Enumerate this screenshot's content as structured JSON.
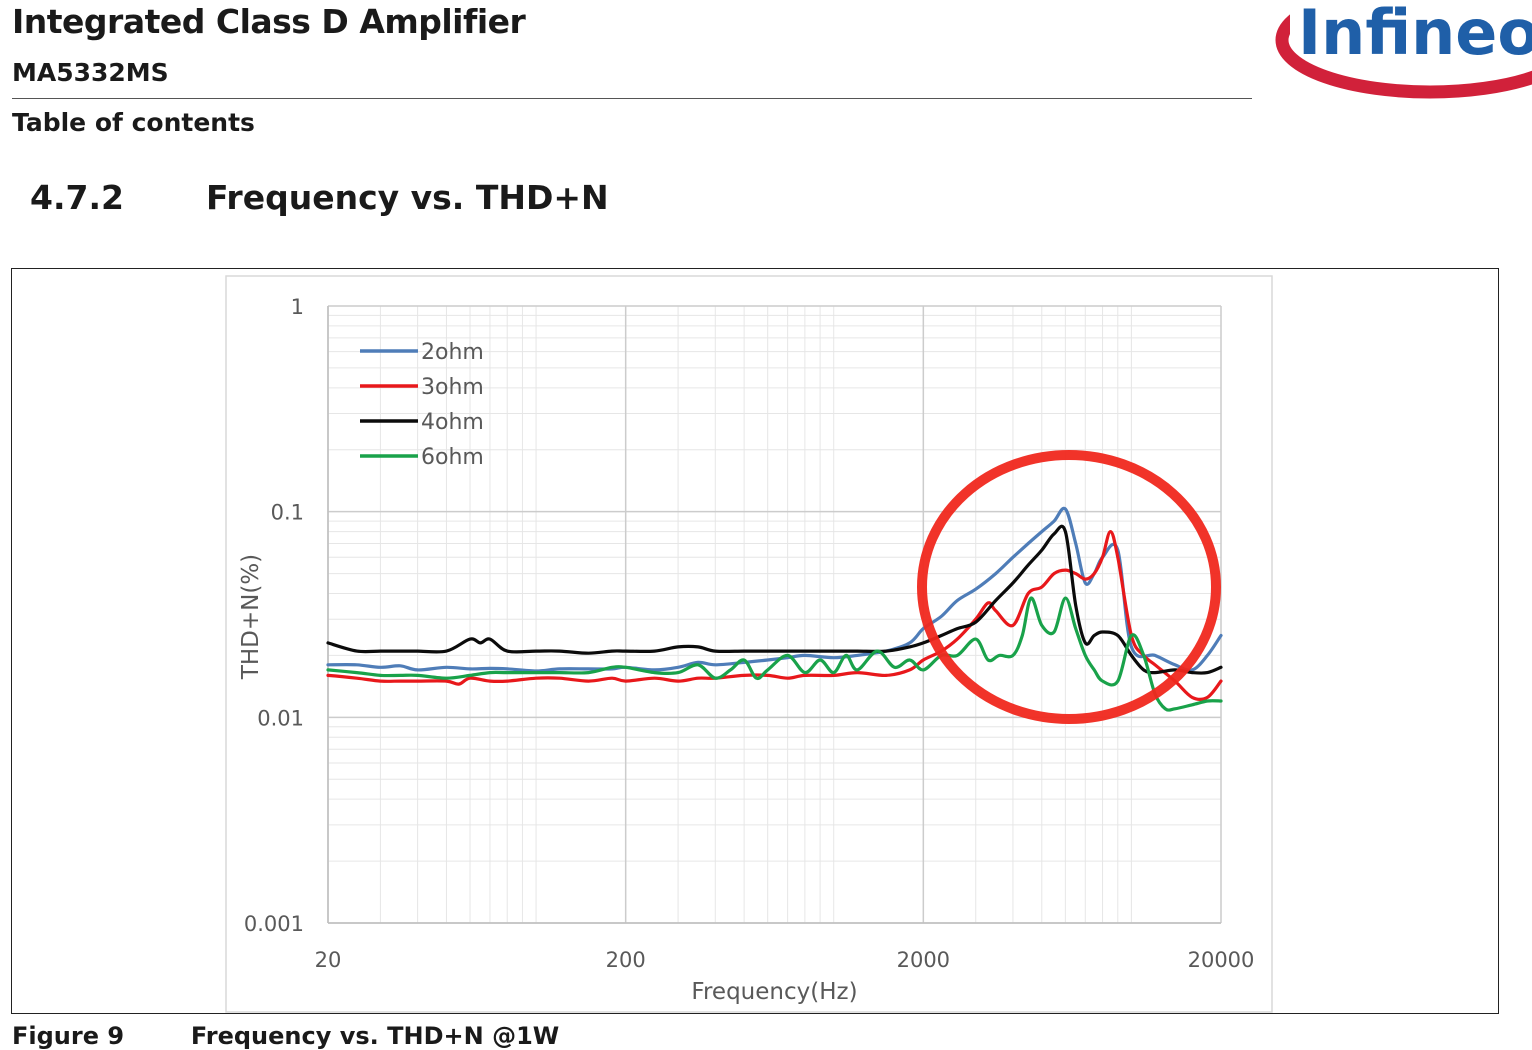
{
  "header": {
    "title": "Integrated Class D Amplifier",
    "subtitle": "MA5332MS",
    "section_label": "Table of contents",
    "logo_text": "Infineon",
    "logo_colors": {
      "text": "#1f5fa8",
      "swoosh": "#d1213a"
    }
  },
  "section": {
    "number": "4.7.2",
    "title": "Frequency vs. THD+N"
  },
  "caption": {
    "prefix": "Figure 9",
    "text": "Frequency vs. THD+N @1W"
  },
  "chart_data": {
    "type": "line",
    "title": "",
    "xlabel": "Frequency(Hz)",
    "ylabel": "THD+N(%)",
    "x_scale": "log",
    "y_scale": "log",
    "xlim": [
      20,
      20000
    ],
    "ylim": [
      0.001,
      1
    ],
    "x_ticks": [
      "20",
      "200",
      "2000",
      "20000"
    ],
    "y_ticks": [
      "0.001",
      "0.01",
      "0.1",
      "1"
    ],
    "grid": true,
    "legend_position": "top-left",
    "annotation": {
      "type": "red-circle-highlight",
      "x_range": [
        2000,
        20000
      ],
      "color": "#f0281e"
    },
    "series": [
      {
        "name": "2ohm",
        "color": "#4f7db8",
        "x": [
          20,
          25,
          30,
          35,
          40,
          50,
          60,
          70,
          80,
          100,
          120,
          150,
          180,
          200,
          250,
          300,
          350,
          400,
          500,
          600,
          700,
          800,
          1000,
          1200,
          1500,
          1800,
          2000,
          2300,
          2600,
          3000,
          3500,
          4000,
          4500,
          5000,
          5500,
          6000,
          6500,
          7000,
          7500,
          8000,
          9000,
          10000,
          12000,
          14000,
          16000,
          18000,
          20000
        ],
        "y": [
          0.018,
          0.018,
          0.0175,
          0.0178,
          0.017,
          0.0175,
          0.0172,
          0.0173,
          0.0172,
          0.0168,
          0.0172,
          0.0172,
          0.0172,
          0.0175,
          0.017,
          0.0175,
          0.0185,
          0.018,
          0.0185,
          0.019,
          0.0195,
          0.02,
          0.0195,
          0.02,
          0.021,
          0.023,
          0.027,
          0.031,
          0.037,
          0.042,
          0.05,
          0.06,
          0.07,
          0.08,
          0.09,
          0.103,
          0.07,
          0.045,
          0.05,
          0.06,
          0.065,
          0.022,
          0.02,
          0.018,
          0.017,
          0.02,
          0.025
        ]
      },
      {
        "name": "3ohm",
        "color": "#e8181b",
        "x": [
          20,
          25,
          30,
          35,
          40,
          50,
          55,
          60,
          70,
          80,
          100,
          120,
          150,
          180,
          200,
          250,
          300,
          350,
          400,
          500,
          600,
          700,
          800,
          1000,
          1200,
          1500,
          1800,
          2000,
          2300,
          2600,
          3000,
          3300,
          3500,
          4000,
          4500,
          5000,
          5500,
          6000,
          6500,
          7000,
          7500,
          8000,
          8500,
          9000,
          10000,
          11000,
          12000,
          14000,
          16000,
          18000,
          20000
        ],
        "y": [
          0.016,
          0.0155,
          0.015,
          0.015,
          0.015,
          0.015,
          0.0145,
          0.0155,
          0.015,
          0.015,
          0.0155,
          0.0155,
          0.015,
          0.0155,
          0.015,
          0.0155,
          0.015,
          0.0155,
          0.0155,
          0.016,
          0.016,
          0.0155,
          0.016,
          0.016,
          0.0165,
          0.016,
          0.017,
          0.019,
          0.021,
          0.024,
          0.03,
          0.036,
          0.033,
          0.028,
          0.04,
          0.043,
          0.05,
          0.052,
          0.05,
          0.047,
          0.05,
          0.06,
          0.08,
          0.06,
          0.025,
          0.02,
          0.018,
          0.015,
          0.0125,
          0.0125,
          0.015
        ]
      },
      {
        "name": "4ohm",
        "color": "#0b0b0b",
        "x": [
          20,
          25,
          30,
          35,
          40,
          50,
          60,
          65,
          70,
          80,
          100,
          120,
          150,
          180,
          200,
          250,
          300,
          350,
          400,
          500,
          600,
          700,
          800,
          1000,
          1200,
          1500,
          1800,
          2000,
          2300,
          2600,
          3000,
          3500,
          4000,
          4500,
          5000,
          5500,
          6000,
          6500,
          7000,
          7500,
          8000,
          9000,
          10000,
          11000,
          12000,
          14000,
          16000,
          18000,
          20000
        ],
        "y": [
          0.023,
          0.021,
          0.021,
          0.021,
          0.021,
          0.021,
          0.024,
          0.023,
          0.024,
          0.021,
          0.021,
          0.021,
          0.0205,
          0.021,
          0.021,
          0.021,
          0.022,
          0.022,
          0.021,
          0.021,
          0.021,
          0.021,
          0.021,
          0.021,
          0.021,
          0.021,
          0.022,
          0.023,
          0.025,
          0.027,
          0.029,
          0.037,
          0.045,
          0.055,
          0.065,
          0.078,
          0.08,
          0.035,
          0.023,
          0.025,
          0.026,
          0.025,
          0.02,
          0.017,
          0.0165,
          0.017,
          0.0165,
          0.0165,
          0.0175
        ]
      },
      {
        "name": "6ohm",
        "color": "#19a24a",
        "x": [
          20,
          25,
          30,
          35,
          40,
          50,
          60,
          70,
          80,
          100,
          120,
          150,
          180,
          200,
          250,
          300,
          350,
          400,
          450,
          500,
          550,
          600,
          700,
          800,
          900,
          1000,
          1100,
          1200,
          1400,
          1600,
          1800,
          2000,
          2300,
          2600,
          3000,
          3300,
          3600,
          4000,
          4300,
          4600,
          5000,
          5500,
          6000,
          6500,
          7000,
          7500,
          8000,
          9000,
          10000,
          11000,
          12000,
          13000,
          14000,
          16000,
          18000,
          20000
        ],
        "y": [
          0.017,
          0.0165,
          0.016,
          0.016,
          0.016,
          0.0155,
          0.016,
          0.0165,
          0.0165,
          0.0165,
          0.0165,
          0.0165,
          0.0175,
          0.0175,
          0.0165,
          0.0165,
          0.018,
          0.0155,
          0.017,
          0.019,
          0.0155,
          0.017,
          0.02,
          0.0165,
          0.019,
          0.0165,
          0.02,
          0.017,
          0.021,
          0.0175,
          0.019,
          0.017,
          0.02,
          0.02,
          0.024,
          0.019,
          0.02,
          0.02,
          0.025,
          0.038,
          0.028,
          0.026,
          0.038,
          0.027,
          0.02,
          0.017,
          0.015,
          0.015,
          0.025,
          0.02,
          0.013,
          0.011,
          0.011,
          0.0115,
          0.012,
          0.012
        ]
      }
    ]
  }
}
